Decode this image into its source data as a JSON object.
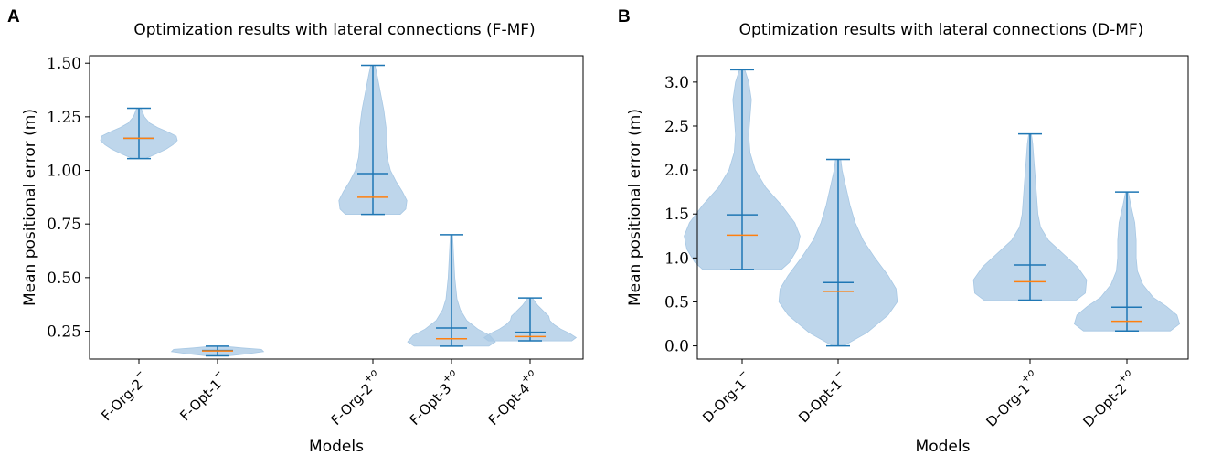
{
  "chart_data": [
    {
      "type": "violin",
      "panel_label": "A",
      "title": "Optimization results with lateral connections (F-MF)",
      "xlabel": "Models",
      "ylabel": "Mean positional error (m)",
      "ylim": [
        0.12,
        1.535
      ],
      "yticks": [
        0.25,
        0.5,
        0.75,
        1.0,
        1.25,
        1.5
      ],
      "ytick_labels": [
        "0.25",
        "0.50",
        "0.75",
        "1.00",
        "1.25",
        "1.50"
      ],
      "series": [
        {
          "name": "F-Org-2",
          "sup": "−",
          "pos": 1,
          "min": 1.055,
          "max": 1.29,
          "mean": 1.15,
          "median": 1.15,
          "density": [
            [
              1.055,
              0.06
            ],
            [
              1.08,
              0.17
            ],
            [
              1.1,
              0.25
            ],
            [
              1.12,
              0.31
            ],
            [
              1.14,
              0.35
            ],
            [
              1.16,
              0.34
            ],
            [
              1.18,
              0.26
            ],
            [
              1.2,
              0.17
            ],
            [
              1.22,
              0.1
            ],
            [
              1.25,
              0.05
            ],
            [
              1.29,
              0.02
            ]
          ]
        },
        {
          "name": "F-Opt-1",
          "sup": "−",
          "pos": 2,
          "min": 0.135,
          "max": 0.18,
          "mean": 0.16,
          "median": 0.158,
          "density": [
            [
              0.135,
              0.1
            ],
            [
              0.145,
              0.28
            ],
            [
              0.155,
              0.42
            ],
            [
              0.165,
              0.4
            ],
            [
              0.172,
              0.22
            ],
            [
              0.18,
              0.05
            ]
          ]
        },
        {
          "name": "F-Org-2",
          "sup": "+o",
          "pos": 4,
          "min": 0.795,
          "max": 1.49,
          "mean": 0.985,
          "median": 0.875,
          "density": [
            [
              0.795,
              0.25
            ],
            [
              0.82,
              0.3
            ],
            [
              0.86,
              0.31
            ],
            [
              0.9,
              0.27
            ],
            [
              0.95,
              0.21
            ],
            [
              1.0,
              0.16
            ],
            [
              1.06,
              0.13
            ],
            [
              1.12,
              0.12
            ],
            [
              1.2,
              0.12
            ],
            [
              1.28,
              0.1
            ],
            [
              1.36,
              0.07
            ],
            [
              1.44,
              0.04
            ],
            [
              1.49,
              0.02
            ]
          ]
        },
        {
          "name": "F-Opt-3",
          "sup": "+o",
          "pos": 5,
          "min": 0.18,
          "max": 0.7,
          "mean": 0.265,
          "median": 0.215,
          "density": [
            [
              0.18,
              0.34
            ],
            [
              0.2,
              0.4
            ],
            [
              0.23,
              0.35
            ],
            [
              0.26,
              0.24
            ],
            [
              0.3,
              0.14
            ],
            [
              0.35,
              0.08
            ],
            [
              0.4,
              0.05
            ],
            [
              0.5,
              0.03
            ],
            [
              0.6,
              0.02
            ],
            [
              0.7,
              0.01
            ]
          ]
        },
        {
          "name": "F-Opt-4",
          "sup": "+o",
          "pos": 6,
          "min": 0.205,
          "max": 0.405,
          "mean": 0.245,
          "median": 0.225,
          "density": [
            [
              0.205,
              0.38
            ],
            [
              0.22,
              0.42
            ],
            [
              0.24,
              0.36
            ],
            [
              0.26,
              0.28
            ],
            [
              0.28,
              0.22
            ],
            [
              0.3,
              0.18
            ],
            [
              0.32,
              0.17
            ],
            [
              0.34,
              0.13
            ],
            [
              0.37,
              0.07
            ],
            [
              0.405,
              0.02
            ]
          ]
        }
      ]
    },
    {
      "type": "violin",
      "panel_label": "B",
      "title": "Optimization results with lateral connections (D-MF)",
      "xlabel": "Models",
      "ylabel": "Mean positional error (m)",
      "ylim": [
        -0.15,
        3.3
      ],
      "yticks": [
        0.0,
        0.5,
        1.0,
        1.5,
        2.0,
        2.5,
        3.0
      ],
      "ytick_labels": [
        "0.0",
        "0.5",
        "1.0",
        "1.5",
        "2.0",
        "2.5",
        "3.0"
      ],
      "series": [
        {
          "name": "D-Org-1",
          "sup": "−",
          "pos": 1,
          "min": 0.87,
          "max": 3.14,
          "mean": 1.49,
          "median": 1.26,
          "density": [
            [
              0.87,
              0.3
            ],
            [
              0.95,
              0.36
            ],
            [
              1.1,
              0.42
            ],
            [
              1.25,
              0.44
            ],
            [
              1.4,
              0.4
            ],
            [
              1.6,
              0.3
            ],
            [
              1.8,
              0.18
            ],
            [
              2.0,
              0.1
            ],
            [
              2.2,
              0.06
            ],
            [
              2.4,
              0.05
            ],
            [
              2.6,
              0.06
            ],
            [
              2.8,
              0.07
            ],
            [
              3.0,
              0.05
            ],
            [
              3.14,
              0.02
            ]
          ]
        },
        {
          "name": "D-Opt-1",
          "sup": "−",
          "pos": 2,
          "min": 0.0,
          "max": 2.12,
          "mean": 0.72,
          "median": 0.62,
          "density": [
            [
              0.0,
              0.04
            ],
            [
              0.15,
              0.22
            ],
            [
              0.35,
              0.38
            ],
            [
              0.5,
              0.45
            ],
            [
              0.65,
              0.44
            ],
            [
              0.8,
              0.38
            ],
            [
              1.0,
              0.28
            ],
            [
              1.2,
              0.19
            ],
            [
              1.4,
              0.13
            ],
            [
              1.6,
              0.09
            ],
            [
              1.8,
              0.06
            ],
            [
              2.0,
              0.03
            ],
            [
              2.12,
              0.02
            ]
          ]
        },
        {
          "name": "D-Org-1",
          "sup": "+o",
          "pos": 4,
          "min": 0.52,
          "max": 2.41,
          "mean": 0.92,
          "median": 0.73,
          "density": [
            [
              0.52,
              0.35
            ],
            [
              0.6,
              0.42
            ],
            [
              0.75,
              0.43
            ],
            [
              0.9,
              0.36
            ],
            [
              1.05,
              0.25
            ],
            [
              1.2,
              0.14
            ],
            [
              1.35,
              0.08
            ],
            [
              1.5,
              0.06
            ],
            [
              1.7,
              0.05
            ],
            [
              1.9,
              0.04
            ],
            [
              2.1,
              0.03
            ],
            [
              2.3,
              0.02
            ],
            [
              2.41,
              0.01
            ]
          ]
        },
        {
          "name": "D-Opt-2",
          "sup": "+o",
          "pos": 5,
          "min": 0.17,
          "max": 1.75,
          "mean": 0.44,
          "median": 0.28,
          "density": [
            [
              0.17,
              0.33
            ],
            [
              0.25,
              0.4
            ],
            [
              0.35,
              0.38
            ],
            [
              0.45,
              0.3
            ],
            [
              0.55,
              0.2
            ],
            [
              0.7,
              0.12
            ],
            [
              0.85,
              0.08
            ],
            [
              1.0,
              0.07
            ],
            [
              1.2,
              0.07
            ],
            [
              1.4,
              0.06
            ],
            [
              1.6,
              0.03
            ],
            [
              1.75,
              0.01
            ]
          ]
        }
      ]
    }
  ]
}
